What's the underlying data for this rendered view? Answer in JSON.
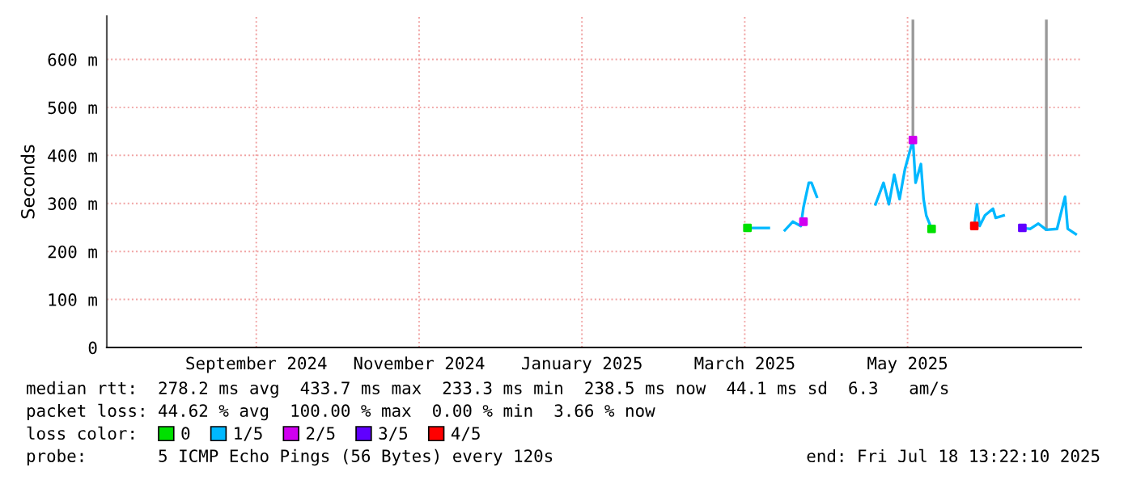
{
  "chart_data": {
    "type": "line",
    "ylabel": "Seconds",
    "xlim": [
      "2024-07-18",
      "2025-07-18"
    ],
    "xticks": [
      {
        "value": "2024-09-12",
        "label": "September 2024"
      },
      {
        "value": "2024-11-12",
        "label": "November 2024"
      },
      {
        "value": "2025-01-12",
        "label": "January 2025"
      },
      {
        "value": "2025-03-14",
        "label": "March 2025"
      },
      {
        "value": "2025-05-14",
        "label": "May 2025"
      }
    ],
    "ylim": [
      0,
      690
    ],
    "yticks": [
      0,
      {
        "value": 100,
        "label": "100 m"
      },
      {
        "value": 200,
        "label": "200 m"
      },
      {
        "value": 300,
        "label": "300 m"
      },
      {
        "value": 400,
        "label": "400 m"
      },
      {
        "value": 500,
        "label": "500 m"
      },
      {
        "value": 600,
        "label": "600 m"
      }
    ],
    "grid": true,
    "legend": "bottom",
    "legend_title": "loss color:",
    "series": [
      {
        "color": "#999999",
        "x": [
          "2025-05-16",
          "2025-05-16",
          "2025-05-17",
          "2025-07-05",
          "2025-07-05"
        ],
        "values": [
          430,
          680,
          null,
          245,
          680
        ]
      },
      {
        "name": "0",
        "type": "scatter",
        "color": "#00e000",
        "x": [
          "2025-03-15",
          "2025-05-23"
        ],
        "values": [
          249,
          247
        ]
      },
      {
        "name": "1/5",
        "color": "#00b8ff",
        "x": [
          "2025-03-15",
          "2025-03-23",
          "2025-03-26",
          "2025-03-29",
          "2025-04-01",
          "2025-04-04",
          "2025-04-05",
          "2025-04-07",
          "2025-04-08",
          "2025-04-10",
          "2025-04-20",
          "2025-05-02",
          "2025-05-05",
          "2025-05-07",
          "2025-05-09",
          "2025-05-11",
          "2025-05-13",
          "2025-05-16",
          "2025-05-17",
          "2025-05-19",
          "2025-05-20",
          "2025-05-21",
          "2025-05-23",
          "2025-06-01",
          "2025-06-08",
          "2025-06-09",
          "2025-06-10",
          "2025-06-12",
          "2025-06-15",
          "2025-06-16",
          "2025-06-19",
          "2025-06-22",
          "2025-06-26",
          "2025-06-29",
          "2025-07-02",
          "2025-07-05",
          "2025-07-09",
          "2025-07-12",
          "2025-07-13",
          "2025-07-16"
        ],
        "values": [
          249,
          249,
          null,
          244,
          262,
          253,
          292,
          343,
          343,
          314,
          null,
          298,
          343,
          298,
          360,
          309,
          371,
          432,
          343,
          382,
          309,
          275,
          247,
          null,
          253,
          298,
          253,
          275,
          289,
          270,
          275,
          null,
          249,
          247,
          258,
          245,
          247,
          314,
          247,
          236
        ]
      },
      {
        "name": "2/5",
        "type": "scatter",
        "color": "#d000f0",
        "x": [
          "2025-04-05",
          "2025-05-16"
        ],
        "values": [
          262,
          432
        ]
      },
      {
        "name": "3/5",
        "type": "scatter",
        "color": "#6000ff",
        "x": [
          "2025-06-26"
        ],
        "values": [
          249
        ]
      },
      {
        "name": "4/5",
        "type": "scatter",
        "color": "#ff0000",
        "x": [
          "2025-06-08"
        ],
        "values": [
          253
        ]
      }
    ],
    "annotations": [
      "median rtt:  278.2 ms avg  433.7 ms max  233.3 ms min  238.5 ms now  44.1 ms sd  6.3   am/s",
      "packet loss: 44.62 % avg  100.00 % max  0.00 % min  3.66 % now",
      "probe:       5 ICMP Echo Pings (56 Bytes) every 120s",
      "end: Fri Jul 18 13:22:10 2025"
    ]
  }
}
